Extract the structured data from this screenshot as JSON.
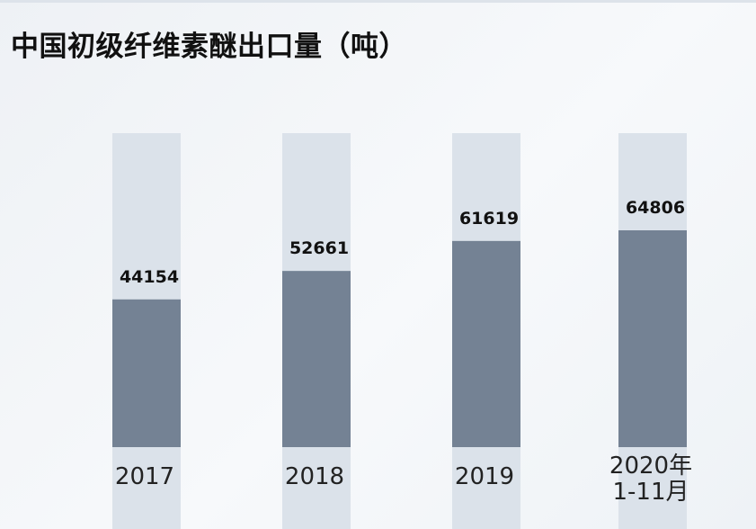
{
  "title": "中国初级纤维素醚出口量（吨）",
  "colors": {
    "bar": "#748294",
    "track": "#dbe2ea",
    "background": "#f3f6f9"
  },
  "chart_data": {
    "type": "bar",
    "title": "中国初级纤维素醚出口量（吨）",
    "categories": [
      [
        "2017"
      ],
      [
        "2018"
      ],
      [
        "2019"
      ],
      [
        "2020年",
        "1-11月"
      ]
    ],
    "values": [
      44154,
      52661,
      61619,
      64806
    ],
    "data_labels": [
      "44154",
      "52661",
      "61619",
      "64806"
    ],
    "ylim": [
      0,
      90000
    ],
    "grid": false,
    "legend": "none"
  }
}
